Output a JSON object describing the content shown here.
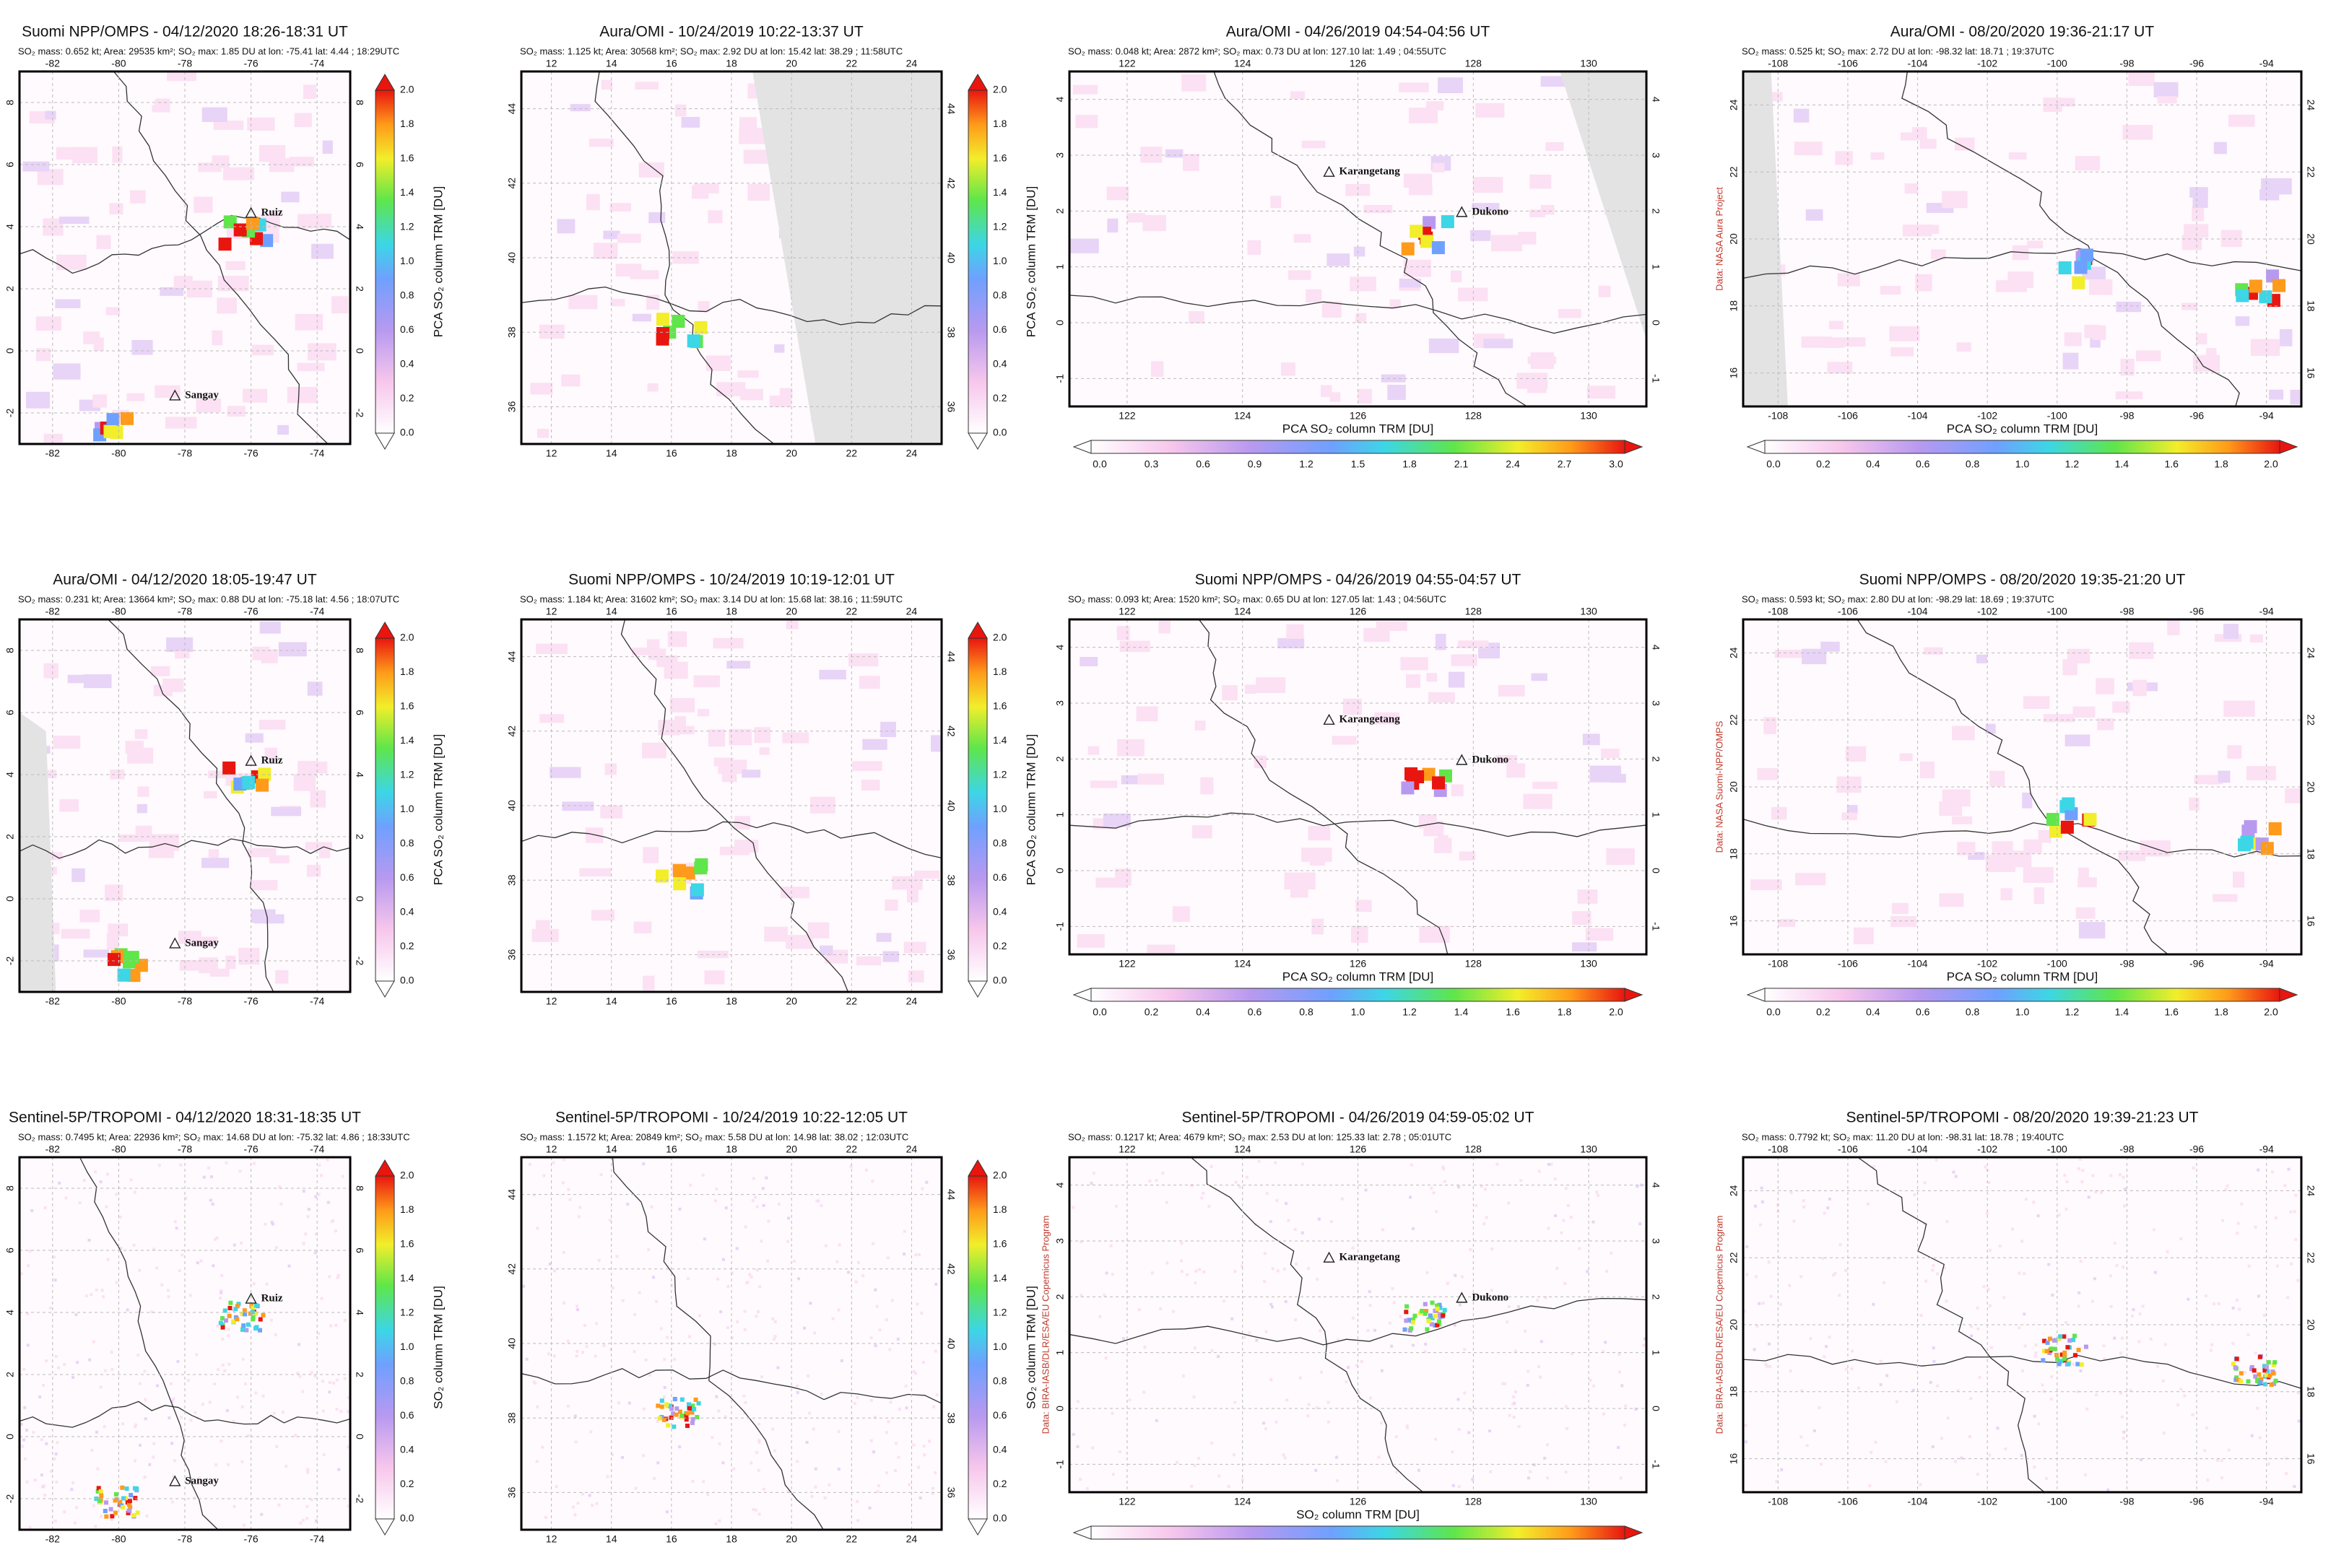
{
  "panels": [
    [
      {
        "title": "Suomi NPP/OMPS - 04/12/2020 18:26-18:31 UT",
        "info": "SO₂ mass: 0.652 kt; Area: 29535 km²; SO₂ max: 1.85 DU at lon: -75.41 lat: 4.44 ; 18:29UTC",
        "lon_ticks": [
          "-82",
          "-80",
          "-78",
          "-76",
          "-74"
        ],
        "lat_ticks": [
          "-2",
          "0",
          "2",
          "4",
          "6",
          "8"
        ],
        "colorbar_label": "PCA SO₂ column TRM [DU]",
        "colorbar_ticks": [
          "0.0",
          "0.2",
          "0.4",
          "0.6",
          "0.8",
          "1.0",
          "1.2",
          "1.4",
          "1.6",
          "1.8",
          "2.0"
        ],
        "volcanoes": [
          "Ruiz",
          "Sangay"
        ]
      },
      {
        "title": "Aura/OMI - 10/24/2019 10:22-13:37 UT",
        "info": "SO₂ mass: 1.125 kt; Area: 30568 km²; SO₂ max: 2.92 DU at lon: 15.42 lat: 38.29 ; 11:58UTC",
        "lon_ticks": [
          "12",
          "14",
          "16",
          "18",
          "20",
          "22",
          "24"
        ],
        "lat_ticks": [
          "36",
          "38",
          "40",
          "42",
          "44"
        ],
        "colorbar_label": "PCA SO₂ column TRM [DU]",
        "colorbar_ticks": [
          "0.0",
          "0.2",
          "0.4",
          "0.6",
          "0.8",
          "1.0",
          "1.2",
          "1.4",
          "1.6",
          "1.8",
          "2.0"
        ]
      },
      {
        "title": "Aura/OMI - 04/26/2019 04:54-04:56 UT",
        "info": "SO₂ mass: 0.048 kt; Area: 2872 km²; SO₂ max: 0.73 DU at lon: 127.10 lat: 1.49 ; 04:55UTC",
        "lon_ticks": [
          "122",
          "124",
          "126",
          "128",
          "130"
        ],
        "lat_ticks": [
          "-1",
          "0",
          "1",
          "2",
          "3",
          "4"
        ],
        "colorbar_label": "PCA SO₂ column TRM [DU]",
        "colorbar_ticks": [
          "0.0",
          "0.3",
          "0.6",
          "0.9",
          "1.2",
          "1.5",
          "1.8",
          "2.1",
          "2.4",
          "2.7",
          "3.0"
        ],
        "volcanoes": [
          "Karangetang",
          "Dukono"
        ]
      },
      {
        "title": "Aura/OMI - 08/20/2020 19:36-21:17 UT",
        "info": "SO₂ mass: 0.525 kt; SO₂ max: 2.72 DU at lon: -98.32 lat: 18.71 ; 19:37UTC",
        "lon_ticks": [
          "-108",
          "-106",
          "-104",
          "-102",
          "-100",
          "-98",
          "-96",
          "-94"
        ],
        "lat_ticks": [
          "16",
          "18",
          "20",
          "22",
          "24"
        ],
        "colorbar_label": "PCA SO₂ column TRM [DU]",
        "colorbar_ticks": [
          "0.0",
          "0.2",
          "0.4",
          "0.6",
          "0.8",
          "1.0",
          "1.2",
          "1.4",
          "1.6",
          "1.8",
          "2.0"
        ],
        "credit": "Data: NASA Aura Project"
      }
    ],
    [
      {
        "title": "Aura/OMI - 04/12/2020 18:05-19:47 UT",
        "info": "SO₂ mass: 0.231 kt; Area: 13664 km²; SO₂ max: 0.88 DU at lon: -75.18 lat: 4.56 ; 18:07UTC",
        "lon_ticks": [
          "-82",
          "-80",
          "-78",
          "-76",
          "-74"
        ],
        "lat_ticks": [
          "-2",
          "0",
          "2",
          "4",
          "6",
          "8"
        ],
        "colorbar_label": "PCA SO₂ column TRM [DU]",
        "colorbar_ticks": [
          "0.0",
          "0.2",
          "0.4",
          "0.6",
          "0.8",
          "1.0",
          "1.2",
          "1.4",
          "1.6",
          "1.8",
          "2.0"
        ],
        "volcanoes": [
          "Ruiz",
          "Sangay"
        ]
      },
      {
        "title": "Suomi NPP/OMPS - 10/24/2019 10:19-12:01 UT",
        "info": "SO₂ mass: 1.184 kt; Area: 31602 km²; SO₂ max: 3.14 DU at lon: 15.68 lat: 38.16 ; 11:59UTC",
        "lon_ticks": [
          "12",
          "14",
          "16",
          "18",
          "20",
          "22",
          "24"
        ],
        "lat_ticks": [
          "36",
          "38",
          "40",
          "42",
          "44"
        ],
        "colorbar_label": "PCA SO₂ column TRM [DU]",
        "colorbar_ticks": [
          "0.0",
          "0.2",
          "0.4",
          "0.6",
          "0.8",
          "1.0",
          "1.2",
          "1.4",
          "1.6",
          "1.8",
          "2.0"
        ]
      },
      {
        "title": "Suomi NPP/OMPS - 04/26/2019 04:55-04:57 UT",
        "info": "SO₂ mass: 0.093 kt; Area: 1520 km²; SO₂ max: 0.65 DU at lon: 127.05 lat: 1.43 ; 04:56UTC",
        "lon_ticks": [
          "122",
          "124",
          "126",
          "128",
          "130"
        ],
        "lat_ticks": [
          "-1",
          "0",
          "1",
          "2",
          "3",
          "4"
        ],
        "colorbar_label": "PCA SO₂ column TRM [DU]",
        "colorbar_ticks": [
          "0.0",
          "0.2",
          "0.4",
          "0.6",
          "0.8",
          "1.0",
          "1.2",
          "1.4",
          "1.6",
          "1.8",
          "2.0"
        ],
        "volcanoes": [
          "Karangetang",
          "Dukono"
        ]
      },
      {
        "title": "Suomi NPP/OMPS - 08/20/2020 19:35-21:20 UT",
        "info": "SO₂ mass: 0.593 kt; SO₂ max: 2.80 DU at lon: -98.29 lat: 18.69 ; 19:37UTC",
        "lon_ticks": [
          "-108",
          "-106",
          "-104",
          "-102",
          "-100",
          "-98",
          "-96",
          "-94"
        ],
        "lat_ticks": [
          "16",
          "18",
          "20",
          "22",
          "24"
        ],
        "colorbar_label": "PCA SO₂ column TRM [DU]",
        "colorbar_ticks": [
          "0.0",
          "0.2",
          "0.4",
          "0.6",
          "0.8",
          "1.0",
          "1.2",
          "1.4",
          "1.6",
          "1.8",
          "2.0"
        ],
        "credit": "Data: NASA Suomi-NPP/OMPS"
      }
    ],
    [
      {
        "title": "Sentinel-5P/TROPOMI - 04/12/2020 18:31-18:35 UT",
        "info": "SO₂ mass: 0.7495 kt; Area: 22936 km²; SO₂ max: 14.68 DU at lon: -75.32 lat: 4.86 ; 18:33UTC",
        "lon_ticks": [
          "-82",
          "-80",
          "-78",
          "-76",
          "-74"
        ],
        "lat_ticks": [
          "-2",
          "0",
          "2",
          "4",
          "6",
          "8"
        ],
        "colorbar_label": "SO₂ column TRM [DU]",
        "colorbar_ticks": [
          "0.0",
          "0.2",
          "0.4",
          "0.6",
          "0.8",
          "1.0",
          "1.2",
          "1.4",
          "1.6",
          "1.8",
          "2.0"
        ],
        "volcanoes": [
          "Ruiz",
          "Sangay"
        ]
      },
      {
        "title": "Sentinel-5P/TROPOMI - 10/24/2019 10:22-12:05 UT",
        "info": "SO₂ mass: 1.1572 kt; Area: 20849 km²; SO₂ max: 5.58 DU at lon: 14.98 lat: 38.02 ; 12:03UTC",
        "lon_ticks": [
          "12",
          "14",
          "16",
          "18",
          "20",
          "22",
          "24"
        ],
        "lat_ticks": [
          "36",
          "38",
          "40",
          "42",
          "44"
        ],
        "colorbar_label": "SO₂ column TRM [DU]",
        "colorbar_ticks": [
          "0.0",
          "0.2",
          "0.4",
          "0.6",
          "0.8",
          "1.0",
          "1.2",
          "1.4",
          "1.6",
          "1.8",
          "2.0"
        ]
      },
      {
        "title": "Sentinel-5P/TROPOMI - 04/26/2019 04:59-05:02 UT",
        "info": "SO₂ mass: 0.1217 kt; Area: 4679 km²; SO₂ max: 2.53 DU at lon: 125.33 lat: 2.78 ; 05:01UTC",
        "lon_ticks": [
          "122",
          "124",
          "126",
          "128",
          "130"
        ],
        "lat_ticks": [
          "-1",
          "0",
          "1",
          "2",
          "3",
          "4"
        ],
        "colorbar_label": "SO₂ column TRM [DU]",
        "volcanoes": [
          "Karangetang",
          "Dukono"
        ],
        "credit": "Data: BIRA-IASB/DLR/ESA/EU Copernicus Program"
      },
      {
        "title": "Sentinel-5P/TROPOMI - 08/20/2020 19:39-21:23 UT",
        "info": "SO₂ mass: 0.7792 kt; SO₂ max: 11.20 DU at lon: -98.31 lat: 18.78 ; 19:40UTC",
        "lon_ticks": [
          "-108",
          "-106",
          "-104",
          "-102",
          "-100",
          "-98",
          "-96",
          "-94"
        ],
        "lat_ticks": [
          "16",
          "18",
          "20",
          "22",
          "24"
        ],
        "credit": "Data: BIRA-IASB/DLR/ESA/EU Copernicus Program"
      }
    ]
  ]
}
